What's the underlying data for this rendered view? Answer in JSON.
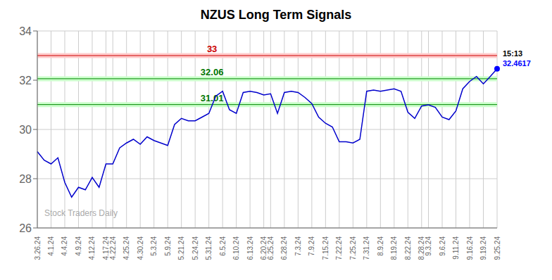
{
  "chart_data": {
    "type": "line",
    "title": "NZUS Long Term Signals",
    "categories": [
      "3.26.24",
      null,
      "4.1.24",
      null,
      "4.4.24",
      null,
      "4.9.24",
      null,
      "4.12.24",
      null,
      "4.17.24",
      "4.22.24",
      null,
      "4.25.24",
      null,
      "4.30.24",
      null,
      "5.3.24",
      null,
      "5.9.24",
      null,
      "5.21.24",
      null,
      "5.24.24",
      null,
      "5.31.24",
      null,
      "6.5.24",
      null,
      "6.10.24",
      null,
      "6.13.24",
      null,
      "6.20.24",
      "6.25.24",
      null,
      "6.28.24",
      null,
      "7.3.24",
      null,
      "7.9.24",
      null,
      "7.15.24",
      null,
      "7.22.24",
      null,
      "7.25.24",
      null,
      "7.31.24",
      null,
      "8.9.24",
      null,
      "8.19.24",
      null,
      "8.22.24",
      null,
      "8.28.24",
      "9.3.24",
      null,
      "9.6.24",
      null,
      "9.11.24",
      null,
      "9.16.24",
      null,
      "9.19.24",
      null,
      "9.25.24"
    ],
    "values": [
      29.1,
      28.75,
      28.6,
      28.85,
      27.85,
      27.25,
      27.65,
      27.55,
      28.05,
      27.65,
      28.6,
      28.6,
      29.25,
      29.45,
      29.6,
      29.4,
      29.7,
      29.55,
      29.45,
      29.35,
      30.2,
      30.45,
      30.35,
      30.35,
      30.5,
      30.65,
      31.35,
      31.55,
      30.8,
      30.65,
      31.5,
      31.55,
      31.5,
      31.4,
      31.45,
      30.65,
      31.5,
      31.55,
      31.5,
      31.3,
      31.05,
      30.5,
      30.25,
      30.1,
      29.5,
      29.5,
      29.45,
      29.6,
      31.55,
      31.6,
      31.55,
      31.6,
      31.65,
      31.55,
      30.7,
      30.45,
      30.95,
      31.0,
      30.9,
      30.5,
      30.4,
      30.75,
      31.65,
      31.95,
      32.15,
      31.85,
      32.15,
      32.4617
    ],
    "color": "#0000cc",
    "last_point_color": "#0000ff",
    "last_point_labels": [
      "15:13",
      "32.4617"
    ],
    "reference_lines": [
      {
        "value": 33.0,
        "label": "33",
        "color": "#cc0000",
        "fill_color": "#ffcccc",
        "text_color": "#cc0000"
      },
      {
        "value": 32.06,
        "label": "32.06",
        "color": "#008800",
        "fill_color": "#ccffcc",
        "text_color": "#007700"
      },
      {
        "value": 31.01,
        "label": "31.01",
        "color": "#008800",
        "fill_color": "#ccffcc",
        "text_color": "#007700"
      }
    ],
    "watermark": "Stock Traders Daily",
    "watermark_color": "#aaaaaa",
    "ylim": [
      26,
      34
    ],
    "yticks": [
      26,
      28,
      30,
      32,
      34
    ],
    "grid": true
  }
}
